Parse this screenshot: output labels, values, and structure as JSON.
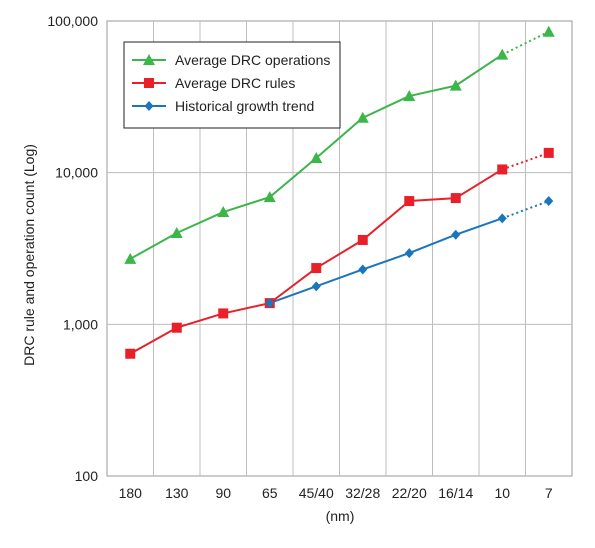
{
  "chart_data": {
    "type": "line",
    "xlabel": "(nm)",
    "ylabel": "DRC rule and operation count (Log)",
    "yscale": "log",
    "ylim": [
      100,
      100000
    ],
    "yticks": [
      100,
      1000,
      10000,
      100000
    ],
    "ytick_labels": [
      "100",
      "1,000",
      "10,000",
      "100,000"
    ],
    "categories": [
      "180",
      "130",
      "90",
      "65",
      "45/40",
      "32/28",
      "22/20",
      "16/14",
      "10",
      "7"
    ],
    "grid": "on",
    "legend_position": "top-left",
    "projected_segment": [
      "10",
      "7"
    ],
    "series": [
      {
        "name": "Average DRC operations",
        "color": "#3cb54a",
        "marker": "triangle",
        "values": [
          2700,
          4000,
          5500,
          6900,
          12500,
          23000,
          32000,
          37500,
          60000,
          85000
        ]
      },
      {
        "name": "Average DRC rules",
        "color": "#e8202a",
        "marker": "square",
        "values": [
          640,
          950,
          1180,
          1380,
          2350,
          3600,
          6500,
          6800,
          10500,
          13500
        ]
      },
      {
        "name": "Historical growth trend",
        "color": "#1b75bc",
        "marker": "diamond",
        "values": [
          null,
          null,
          null,
          1380,
          1780,
          2300,
          2950,
          3900,
          5000,
          6500
        ]
      }
    ]
  }
}
